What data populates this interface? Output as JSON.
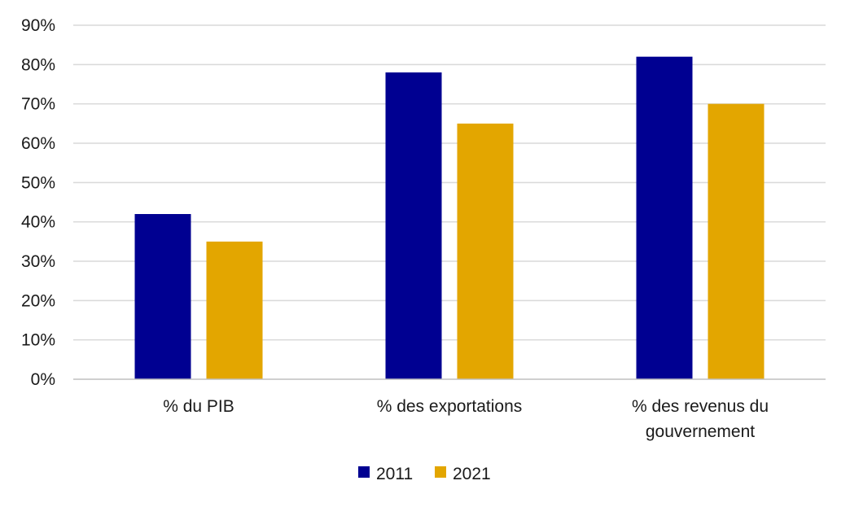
{
  "chart_data": {
    "type": "bar",
    "title": "",
    "xlabel": "",
    "ylabel": "",
    "categories": [
      [
        "% du PIB"
      ],
      [
        "% des exportations"
      ],
      [
        "% des revenus du",
        "gouvernement"
      ]
    ],
    "series": [
      {
        "name": "2011",
        "color": "#000091",
        "values": [
          42,
          78,
          82
        ]
      },
      {
        "name": "2021",
        "color": "#E3A600",
        "values": [
          35,
          65,
          70
        ]
      }
    ],
    "ylim": [
      0,
      90
    ],
    "yticks": [
      0,
      10,
      20,
      30,
      40,
      50,
      60,
      70,
      80,
      90
    ],
    "ytick_suffix": "%",
    "grid": true,
    "legend_position": "bottom"
  }
}
